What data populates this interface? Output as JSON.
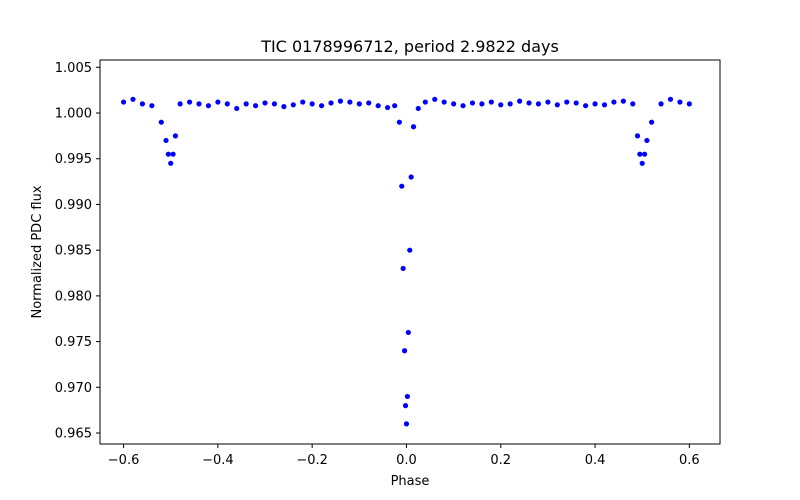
{
  "chart_data": {
    "type": "scatter",
    "title": "TIC 0178996712, period 2.9822 days",
    "xlabel": "Phase",
    "ylabel": "Normalized PDC flux",
    "xlim": [
      -0.65,
      0.665
    ],
    "ylim": [
      0.9638,
      1.0058
    ],
    "xticks": [
      -0.6,
      -0.4,
      -0.2,
      0.0,
      0.2,
      0.4,
      0.6
    ],
    "xtick_labels": [
      "−0.6",
      "−0.4",
      "−0.2",
      "0.0",
      "0.2",
      "0.4",
      "0.6"
    ],
    "yticks": [
      0.965,
      0.97,
      0.975,
      0.98,
      0.985,
      0.99,
      0.995,
      1.0,
      1.005
    ],
    "ytick_labels": [
      "0.965",
      "0.970",
      "0.975",
      "0.980",
      "0.985",
      "0.990",
      "0.995",
      "1.000",
      "1.005"
    ],
    "grid": false,
    "marker_color": "#0000ff",
    "series": [
      {
        "x": [
          -0.6,
          -0.58,
          -0.56,
          -0.54,
          -0.52,
          -0.51,
          -0.505,
          -0.5,
          -0.495,
          -0.49,
          -0.48,
          -0.46,
          -0.44,
          -0.42,
          -0.4,
          -0.38,
          -0.36,
          -0.34,
          -0.32,
          -0.3,
          -0.28,
          -0.26,
          -0.24,
          -0.22,
          -0.2,
          -0.18,
          -0.16,
          -0.14,
          -0.12,
          -0.1,
          -0.08,
          -0.06,
          -0.04,
          -0.025,
          -0.015,
          -0.01,
          -0.007,
          -0.004,
          -0.002,
          0.0,
          0.002,
          0.004,
          0.007,
          0.01,
          0.015,
          0.025,
          0.04,
          0.06,
          0.08,
          0.1,
          0.12,
          0.14,
          0.16,
          0.18,
          0.2,
          0.22,
          0.24,
          0.26,
          0.28,
          0.3,
          0.32,
          0.34,
          0.36,
          0.38,
          0.4,
          0.42,
          0.44,
          0.46,
          0.48,
          0.49,
          0.495,
          0.5,
          0.505,
          0.51,
          0.52,
          0.54,
          0.56,
          0.58,
          0.6
        ],
        "y": [
          1.0012,
          1.0015,
          1.001,
          1.0008,
          0.999,
          0.997,
          0.9955,
          0.9945,
          0.9955,
          0.9975,
          1.001,
          1.0012,
          1.001,
          1.0008,
          1.0012,
          1.001,
          1.0005,
          1.001,
          1.0008,
          1.0011,
          1.001,
          1.0007,
          1.0009,
          1.0012,
          1.001,
          1.0008,
          1.0011,
          1.0013,
          1.0012,
          1.001,
          1.0011,
          1.0008,
          1.0006,
          1.0008,
          0.999,
          0.992,
          0.983,
          0.974,
          0.968,
          0.966,
          0.969,
          0.976,
          0.985,
          0.993,
          0.9985,
          1.0005,
          1.0012,
          1.0015,
          1.0012,
          1.001,
          1.0008,
          1.0011,
          1.001,
          1.0012,
          1.0009,
          1.001,
          1.0013,
          1.0011,
          1.001,
          1.0012,
          1.0009,
          1.0012,
          1.0011,
          1.0008,
          1.001,
          1.0009,
          1.0012,
          1.0013,
          1.001,
          0.9975,
          0.9955,
          0.9945,
          0.9955,
          0.997,
          0.999,
          1.001,
          1.0015,
          1.0012,
          1.001
        ]
      }
    ]
  }
}
